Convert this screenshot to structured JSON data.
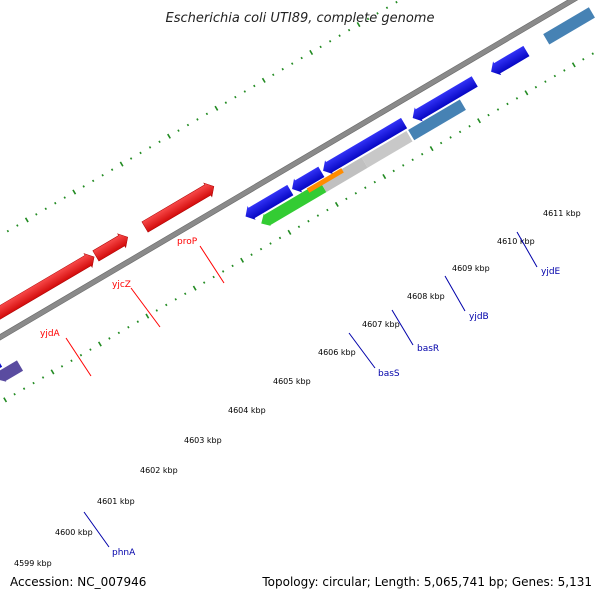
{
  "title": "Escherichia coli UTI89, complete genome",
  "footer": {
    "accession": "Accession: NC_007946",
    "stats": "Topology: circular; Length: 5,065,741 bp; Genes: 5,131"
  },
  "colors": {
    "backbone": "#808080",
    "forward_genes": "#ff0000",
    "reverse_genes": "#0000ff",
    "label_forward": "#ff0000",
    "label_reverse": "#0000aa",
    "gc_dots": "#228b22",
    "basS": "#33cc33",
    "basR": "#ff8c00",
    "yjdB": "#c8c8c8",
    "yjdE": "#4682b4",
    "phnA": "#5a4ca0",
    "grey_gene": "#555555"
  },
  "tick_labels": [
    "4599 kbp",
    "4600 kbp",
    "4601 kbp",
    "4602 kbp",
    "4603 kbp",
    "4604 kbp",
    "4605 kbp",
    "4606 kbp",
    "4607 kbp",
    "4608 kbp",
    "4609 kbp",
    "4610 kbp",
    "4611 kbp"
  ],
  "gene_labels": [
    {
      "name": "yjdA",
      "strand": "forward"
    },
    {
      "name": "yjcZ",
      "strand": "forward"
    },
    {
      "name": "proP",
      "strand": "forward"
    },
    {
      "name": "basS",
      "strand": "reverse"
    },
    {
      "name": "basR",
      "strand": "reverse"
    },
    {
      "name": "yjdB",
      "strand": "reverse"
    },
    {
      "name": "yjdE",
      "strand": "reverse"
    },
    {
      "name": "phnA",
      "strand": "reverse"
    }
  ]
}
